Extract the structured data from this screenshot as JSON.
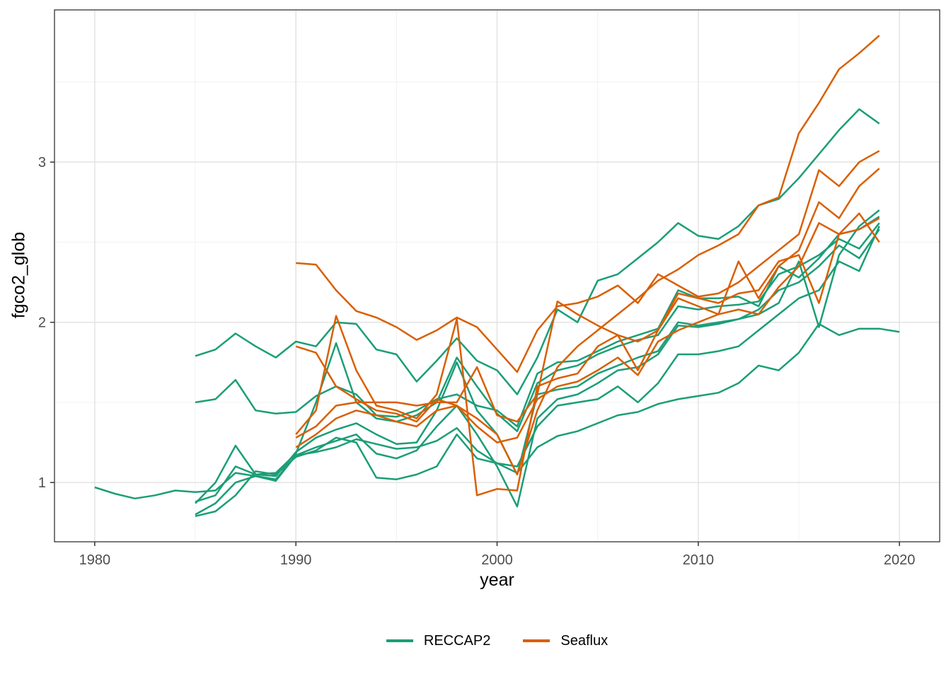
{
  "chart_data": {
    "type": "line",
    "title": "",
    "xlabel": "year",
    "ylabel": "fgco2_glob",
    "x_axis": {
      "range": [
        1978,
        2022
      ],
      "major_ticks": [
        1980,
        1990,
        2000,
        2010,
        2020
      ],
      "tick_labels": [
        "1980",
        "1990",
        "2000",
        "2010",
        "2020"
      ],
      "minor_ticks": [
        1985,
        1995,
        2005,
        2015
      ]
    },
    "y_axis": {
      "range": [
        0.63,
        3.95
      ],
      "major_ticks": [
        1,
        2,
        3
      ],
      "tick_labels": [
        "1",
        "2",
        "3"
      ],
      "minor_ticks": [
        1.5,
        2.5,
        3.5
      ]
    },
    "grid": true,
    "colors": {
      "panel_bg": "#FFFFFF",
      "panel_border": "#333333",
      "grid_major": "#E3E3E3",
      "grid_minor": "#F0F0F0",
      "tick": "#333333",
      "tick_label": "#4D4D4D",
      "accent_teal": "#1B9E77",
      "accent_orange": "#D95F02"
    },
    "legend": {
      "position": "bottom",
      "entries": [
        {
          "label": "RECCAP2",
          "color": "#1B9E77"
        },
        {
          "label": "Seaflux",
          "color": "#D95F02"
        }
      ]
    },
    "series": [
      {
        "name": "RECCAP2-1",
        "group": "RECCAP2",
        "start_year": 1980,
        "values": [
          0.97,
          0.93,
          0.9,
          0.92,
          0.95,
          0.94,
          0.95,
          1.06,
          1.04,
          1.01,
          1.17,
          1.19,
          1.22,
          1.27,
          1.24,
          1.21,
          1.22,
          1.26,
          1.34,
          1.2,
          1.12,
          1.06,
          1.22,
          1.29,
          1.32,
          1.37,
          1.42,
          1.44,
          1.49,
          1.52,
          1.54,
          1.56,
          1.62,
          1.73,
          1.7,
          1.81,
          1.99,
          1.92,
          1.96,
          1.96,
          1.94
        ]
      },
      {
        "name": "RECCAP2-2",
        "group": "RECCAP2",
        "start_year": 1985,
        "values": [
          1.79,
          1.83,
          1.93,
          1.85,
          1.78,
          1.88,
          1.85,
          2.0,
          1.99,
          1.83,
          1.8,
          1.63,
          1.76,
          1.9,
          1.76,
          1.7,
          1.55,
          1.78,
          2.08,
          2.0,
          2.26,
          2.3,
          2.4,
          2.5,
          2.62,
          2.54,
          2.52,
          2.6,
          2.73,
          2.77,
          2.9,
          3.05,
          3.2,
          3.33,
          3.24
        ]
      },
      {
        "name": "RECCAP2-3",
        "group": "RECCAP2",
        "start_year": 1985,
        "values": [
          1.5,
          1.52,
          1.64,
          1.45,
          1.43,
          1.44,
          1.54,
          1.6,
          1.55,
          1.42,
          1.41,
          1.45,
          1.52,
          1.55,
          1.48,
          1.45,
          1.35,
          1.68,
          1.75,
          1.76,
          1.82,
          1.88,
          1.92,
          1.96,
          2.2,
          2.15,
          2.15,
          2.16,
          2.1,
          2.35,
          2.28,
          2.4,
          2.55,
          2.58,
          2.66
        ]
      },
      {
        "name": "RECCAP2-4",
        "group": "RECCAP2",
        "start_year": 1985,
        "values": [
          0.88,
          0.92,
          1.1,
          1.05,
          1.06,
          1.18,
          1.5,
          1.87,
          1.5,
          1.4,
          1.38,
          1.42,
          1.5,
          1.78,
          1.6,
          1.43,
          1.32,
          1.62,
          1.7,
          1.73,
          1.8,
          1.85,
          1.89,
          1.92,
          2.1,
          2.08,
          2.1,
          2.11,
          2.13,
          2.3,
          2.35,
          2.42,
          2.52,
          2.46,
          2.62
        ]
      },
      {
        "name": "RECCAP2-5",
        "group": "RECCAP2",
        "start_year": 1985,
        "values": [
          0.87,
          1.0,
          1.23,
          1.05,
          1.04,
          1.19,
          1.28,
          1.33,
          1.37,
          1.3,
          1.24,
          1.25,
          1.45,
          1.75,
          1.45,
          1.3,
          1.05,
          1.55,
          1.58,
          1.6,
          1.68,
          1.73,
          1.78,
          1.82,
          2.0,
          1.98,
          2.0,
          2.02,
          2.08,
          2.2,
          2.25,
          2.35,
          2.48,
          2.4,
          2.58
        ]
      },
      {
        "name": "RECCAP2-6",
        "group": "RECCAP2",
        "start_year": 1985,
        "values": [
          0.8,
          0.87,
          1.0,
          1.04,
          1.02,
          1.17,
          1.22,
          1.26,
          1.3,
          1.18,
          1.15,
          1.2,
          1.35,
          1.48,
          1.3,
          1.1,
          0.85,
          1.4,
          1.52,
          1.55,
          1.62,
          1.7,
          1.72,
          1.8,
          1.98,
          1.97,
          1.99,
          2.02,
          2.05,
          2.12,
          2.38,
          1.97,
          2.42,
          2.6,
          2.7
        ]
      },
      {
        "name": "RECCAP2-7",
        "group": "RECCAP2",
        "start_year": 1985,
        "values": [
          0.79,
          0.82,
          0.92,
          1.07,
          1.05,
          1.16,
          1.2,
          1.28,
          1.25,
          1.03,
          1.02,
          1.05,
          1.1,
          1.3,
          1.15,
          1.12,
          1.1,
          1.35,
          1.48,
          1.5,
          1.52,
          1.6,
          1.5,
          1.62,
          1.8,
          1.8,
          1.82,
          1.85,
          1.95,
          2.05,
          2.15,
          2.2,
          2.38,
          2.32,
          2.6
        ]
      },
      {
        "name": "Seaflux-1",
        "group": "Seaflux",
        "start_year": 1990,
        "values": [
          2.37,
          2.36,
          2.2,
          2.07,
          2.03,
          1.97,
          1.89,
          1.95,
          2.03,
          1.97,
          1.83,
          1.69,
          1.95,
          2.1,
          2.12,
          2.16,
          2.23,
          2.12,
          2.3,
          2.23,
          2.16,
          2.18,
          2.25,
          2.35,
          2.45,
          2.55,
          2.95,
          2.85,
          3.0,
          3.07
        ]
      },
      {
        "name": "Seaflux-2",
        "group": "Seaflux",
        "start_year": 1990,
        "values": [
          1.85,
          1.81,
          1.6,
          1.52,
          1.45,
          1.43,
          1.38,
          1.52,
          1.48,
          1.4,
          1.3,
          1.05,
          1.45,
          1.72,
          1.85,
          1.95,
          2.05,
          2.15,
          2.26,
          2.33,
          2.42,
          2.48,
          2.55,
          2.73,
          2.78,
          3.18,
          3.37,
          3.58,
          3.68,
          3.79
        ]
      },
      {
        "name": "Seaflux-3",
        "group": "Seaflux",
        "start_year": 1990,
        "values": [
          1.3,
          1.45,
          2.04,
          1.7,
          1.48,
          1.45,
          1.4,
          1.55,
          2.02,
          0.92,
          0.96,
          0.95,
          1.6,
          1.65,
          1.68,
          1.85,
          1.92,
          1.7,
          1.95,
          2.15,
          2.1,
          2.05,
          2.38,
          2.15,
          2.35,
          2.45,
          2.75,
          2.65,
          2.85,
          2.96
        ]
      },
      {
        "name": "Seaflux-4",
        "group": "Seaflux",
        "start_year": 1990,
        "values": [
          1.28,
          1.35,
          1.48,
          1.5,
          1.5,
          1.5,
          1.48,
          1.5,
          1.5,
          1.72,
          1.42,
          1.38,
          1.55,
          2.13,
          2.05,
          1.98,
          1.92,
          1.88,
          1.95,
          2.18,
          2.15,
          2.12,
          2.18,
          2.2,
          2.38,
          2.42,
          2.12,
          2.55,
          2.58,
          2.65
        ]
      },
      {
        "name": "Seaflux-5",
        "group": "Seaflux",
        "start_year": 1990,
        "values": [
          1.22,
          1.3,
          1.4,
          1.45,
          1.42,
          1.38,
          1.35,
          1.45,
          1.48,
          1.35,
          1.25,
          1.28,
          1.52,
          1.6,
          1.63,
          1.7,
          1.78,
          1.67,
          1.88,
          1.95,
          2.0,
          2.05,
          2.08,
          2.05,
          2.22,
          2.35,
          2.62,
          2.55,
          2.68,
          2.5
        ]
      }
    ]
  }
}
